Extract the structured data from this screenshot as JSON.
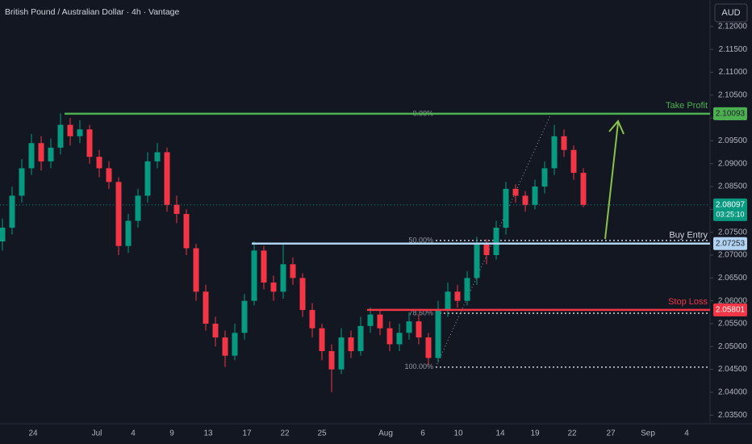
{
  "header": {
    "title": "British Pound / Australian Dollar · 4h · Vantage",
    "currency_button": "AUD"
  },
  "chart_data": {
    "type": "candlestick",
    "open": [
      2.073,
      2.076,
      2.083,
      2.089,
      2.0945,
      2.0905,
      2.0935,
      2.0985,
      2.096,
      2.0975,
      2.0915,
      2.089,
      2.086,
      2.072,
      2.0775,
      2.083,
      2.0905,
      2.0925,
      2.081,
      2.079,
      2.0715,
      2.062,
      2.055,
      2.052,
      2.048,
      2.053,
      2.06,
      2.071,
      2.064,
      2.062,
      2.068,
      2.065,
      2.058,
      2.054,
      2.049,
      2.045,
      2.052,
      2.049,
      2.0545,
      2.057,
      2.054,
      2.0505,
      2.053,
      2.0555,
      2.052,
      2.0475,
      2.058,
      2.062,
      2.06,
      2.065,
      2.0725,
      2.07,
      2.076,
      2.0845,
      2.083,
      2.081,
      2.085,
      2.089,
      2.096,
      2.093,
      2.088
    ],
    "high": [
      2.078,
      2.085,
      2.091,
      2.0965,
      2.096,
      2.0955,
      2.101,
      2.1,
      2.0995,
      2.0985,
      2.093,
      2.0905,
      2.087,
      2.079,
      2.0845,
      2.0925,
      2.0945,
      2.0935,
      2.083,
      2.08,
      2.0725,
      2.0635,
      2.0565,
      2.0535,
      2.055,
      2.0615,
      2.073,
      2.072,
      2.0655,
      2.0725,
      2.0695,
      2.066,
      2.0595,
      2.055,
      2.0505,
      2.054,
      2.0535,
      2.0565,
      2.0585,
      2.058,
      2.0555,
      2.055,
      2.0575,
      2.057,
      2.053,
      2.06,
      2.064,
      2.0635,
      2.0665,
      2.074,
      2.0735,
      2.0775,
      2.086,
      2.0855,
      2.084,
      2.0865,
      2.0905,
      2.0985,
      2.0975,
      2.094,
      2.089
    ],
    "low": [
      2.071,
      2.0745,
      2.0815,
      2.0875,
      2.0885,
      2.089,
      2.092,
      2.094,
      2.0945,
      2.09,
      2.087,
      2.0845,
      2.07,
      2.0705,
      2.076,
      2.0815,
      2.089,
      2.0795,
      2.077,
      2.07,
      2.06,
      2.0535,
      2.05,
      2.0455,
      2.047,
      2.0515,
      2.059,
      2.0625,
      2.06,
      2.0605,
      2.0635,
      2.0565,
      2.052,
      2.047,
      2.04,
      2.044,
      2.0475,
      2.048,
      2.053,
      2.0525,
      2.049,
      2.049,
      2.0515,
      2.0505,
      2.046,
      2.0465,
      2.0565,
      2.0585,
      2.059,
      2.0635,
      2.068,
      2.069,
      2.0745,
      2.0815,
      2.0795,
      2.08,
      2.0835,
      2.0875,
      2.0915,
      2.0865,
      2.0805
    ],
    "close": [
      2.076,
      2.083,
      2.089,
      2.0945,
      2.0905,
      2.0935,
      2.0985,
      2.096,
      2.0975,
      2.0915,
      2.089,
      2.086,
      2.072,
      2.0775,
      2.083,
      2.0905,
      2.0925,
      2.081,
      2.079,
      2.0715,
      2.062,
      2.055,
      2.052,
      2.048,
      2.053,
      2.06,
      2.071,
      2.064,
      2.062,
      2.068,
      2.065,
      2.058,
      2.054,
      2.049,
      2.045,
      2.052,
      2.049,
      2.0545,
      2.057,
      2.054,
      2.0505,
      2.053,
      2.0555,
      2.052,
      2.0475,
      2.058,
      2.062,
      2.06,
      2.065,
      2.0725,
      2.07,
      2.076,
      2.0845,
      2.083,
      2.081,
      2.085,
      2.089,
      2.096,
      2.093,
      2.088,
      2.081
    ],
    "up_color": "#089981",
    "down_color": "#f23645",
    "ylim": [
      2.0331,
      2.1258
    ],
    "yticks": [
      {
        "value": 2.035,
        "label": "2.03500"
      },
      {
        "value": 2.04,
        "label": "2.04000"
      },
      {
        "value": 2.045,
        "label": "2.04500"
      },
      {
        "value": 2.05,
        "label": "2.05000"
      },
      {
        "value": 2.055,
        "label": "2.05500"
      },
      {
        "value": 2.06,
        "label": "2.06000"
      },
      {
        "value": 2.065,
        "label": "2.06500"
      },
      {
        "value": 2.07,
        "label": "2.07000"
      },
      {
        "value": 2.075,
        "label": "2.07500"
      },
      {
        "value": 2.08,
        "label": "2.08000"
      },
      {
        "value": 2.085,
        "label": "2.08500"
      },
      {
        "value": 2.09,
        "label": "2.09000"
      },
      {
        "value": 2.095,
        "label": "2.09500"
      },
      {
        "value": 2.1,
        "label": "2.10000"
      },
      {
        "value": 2.105,
        "label": "2.10500"
      },
      {
        "value": 2.11,
        "label": "2.11000"
      },
      {
        "value": 2.115,
        "label": "2.11500"
      },
      {
        "value": 2.12,
        "label": "2.12000"
      }
    ],
    "x_labels": [
      "24",
      "Jul",
      "4",
      "9",
      "13",
      "17",
      "22",
      "25",
      "Aug",
      "6",
      "10",
      "14",
      "19",
      "22",
      "27",
      "Sep",
      "4"
    ],
    "last_price": {
      "value": 2.08097,
      "countdown": "03:25:10"
    },
    "levels": [
      {
        "name": "Take Profit",
        "value": 2.10093,
        "color": "#4caf50"
      },
      {
        "name": "Buy Entry",
        "value": 2.07253,
        "color": "#b2d3f2"
      },
      {
        "name": "Stop Loss",
        "value": 2.05801,
        "color": "#f23645"
      }
    ],
    "fib": [
      {
        "label": "0.00%",
        "value": 2.1009
      },
      {
        "label": "50.00%",
        "value": 2.0732
      },
      {
        "label": "78.60%",
        "value": 2.0573
      },
      {
        "label": "100.00%",
        "value": 2.0455
      }
    ]
  }
}
